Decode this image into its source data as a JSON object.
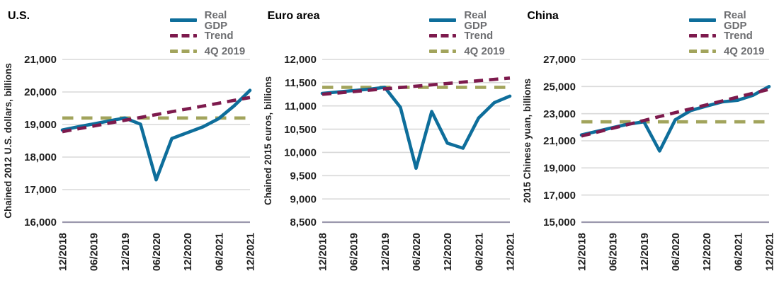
{
  "figure_name": "Real GDP vs pre-COVID trend, three economies",
  "colors": {
    "real_gdp": "#0E6E9B",
    "trend": "#7D1A4D",
    "fourq_2019": "#A2A45C",
    "gridline": "#D9D9D9",
    "axis_line": "#9B98AD",
    "tick_text": "#1F1F1F",
    "legend_text": "#6D6E71",
    "title_text": "#000000"
  },
  "legend": {
    "position": "top-right",
    "items": [
      {
        "label": "Real GDP",
        "color": "#0E6E9B",
        "style": "solid"
      },
      {
        "label": "Trend",
        "color": "#7D1A4D",
        "style": "dashed"
      },
      {
        "label": "4Q 2019",
        "color": "#A2A45C",
        "style": "dashed"
      }
    ]
  },
  "chart_data": [
    {
      "type": "line",
      "title": "U.S.",
      "ylabel": "Chained 2012 U.S. dollars, billions",
      "x_quarters": [
        "12/2018",
        "03/2019",
        "06/2019",
        "09/2019",
        "12/2019",
        "03/2020",
        "06/2020",
        "09/2020",
        "12/2020",
        "03/2021",
        "06/2021",
        "09/2021",
        "12/2021"
      ],
      "x_tick_indices": [
        0,
        2,
        4,
        6,
        8,
        10,
        12
      ],
      "x_tick_labels": [
        "12/2018",
        "06/2019",
        "12/2019",
        "06/2020",
        "12/2020",
        "06/2021",
        "12/2021"
      ],
      "ylim": [
        16000,
        21000
      ],
      "yticks": [
        16000,
        17000,
        18000,
        19000,
        20000,
        21000
      ],
      "ytick_labels": [
        "16,000",
        "17,000",
        "18,000",
        "19,000",
        "20,000",
        "21,000"
      ],
      "grid": true,
      "series": [
        {
          "name": "Real GDP",
          "color": "#0E6E9B",
          "style": "solid",
          "values": [
            18830,
            18930,
            19020,
            19110,
            19200,
            19010,
            17300,
            18570,
            18750,
            18930,
            19180,
            19580,
            20050
          ]
        },
        {
          "name": "Trend",
          "color": "#7D1A4D",
          "style": "dashed",
          "values": [
            18780,
            18868,
            18955,
            19043,
            19130,
            19218,
            19305,
            19393,
            19480,
            19568,
            19655,
            19743,
            19830
          ]
        },
        {
          "name": "4Q 2019",
          "color": "#A2A45C",
          "style": "dashed",
          "values": [
            19200,
            19200,
            19200,
            19200,
            19200,
            19200,
            19200,
            19200,
            19200,
            19200,
            19200,
            19200,
            19200
          ]
        }
      ]
    },
    {
      "type": "line",
      "title": "Euro area",
      "ylabel": "Chained 2015 euros, billions",
      "x_quarters": [
        "12/2018",
        "03/2019",
        "06/2019",
        "09/2019",
        "12/2019",
        "03/2020",
        "06/2020",
        "09/2020",
        "12/2020",
        "03/2021",
        "06/2021",
        "09/2021",
        "12/2021"
      ],
      "x_tick_indices": [
        0,
        2,
        4,
        6,
        8,
        10,
        12
      ],
      "x_tick_labels": [
        "12/2018",
        "06/2019",
        "12/2019",
        "06/2020",
        "12/2020",
        "06/2021",
        "12/2021"
      ],
      "ylim": [
        8500,
        12000
      ],
      "yticks": [
        8500,
        9000,
        9500,
        10000,
        10500,
        11000,
        11500,
        12000
      ],
      "ytick_labels": [
        "8,500",
        "9,000",
        "9,500",
        "10,000",
        "10,500",
        "11,000",
        "11,500",
        "12,000"
      ],
      "grid": true,
      "series": [
        {
          "name": "Real GDP",
          "color": "#0E6E9B",
          "style": "solid",
          "values": [
            11270,
            11300,
            11330,
            11360,
            11400,
            10970,
            9660,
            10880,
            10200,
            10090,
            10740,
            11070,
            11210
          ]
        },
        {
          "name": "Trend",
          "color": "#7D1A4D",
          "style": "dashed",
          "values": [
            11250,
            11279,
            11308,
            11338,
            11367,
            11396,
            11425,
            11454,
            11483,
            11513,
            11542,
            11571,
            11600
          ]
        },
        {
          "name": "4Q 2019",
          "color": "#A2A45C",
          "style": "dashed",
          "values": [
            11400,
            11400,
            11400,
            11400,
            11400,
            11400,
            11400,
            11400,
            11400,
            11400,
            11400,
            11400,
            11400
          ]
        }
      ]
    },
    {
      "type": "line",
      "title": "China",
      "ylabel": "2015 Chinese yuan, billions",
      "x_quarters": [
        "12/2018",
        "03/2019",
        "06/2019",
        "09/2019",
        "12/2019",
        "03/2020",
        "06/2020",
        "09/2020",
        "12/2020",
        "03/2021",
        "06/2021",
        "09/2021",
        "12/2021"
      ],
      "x_tick_indices": [
        0,
        2,
        4,
        6,
        8,
        10,
        12
      ],
      "x_tick_labels": [
        "12/2018",
        "06/2019",
        "12/2019",
        "06/2020",
        "12/2020",
        "06/2021",
        "12/2021"
      ],
      "ylim": [
        15000,
        27000
      ],
      "yticks": [
        15000,
        17000,
        19000,
        21000,
        23000,
        25000,
        27000
      ],
      "ytick_labels": [
        "15,000",
        "17,000",
        "19,000",
        "21,000",
        "23,000",
        "25,000",
        "27,000"
      ],
      "grid": true,
      "series": [
        {
          "name": "Real GDP",
          "color": "#0E6E9B",
          "style": "solid",
          "values": [
            21430,
            21700,
            21970,
            22230,
            22400,
            20250,
            22550,
            23240,
            23560,
            23870,
            23990,
            24370,
            25000
          ]
        },
        {
          "name": "Trend",
          "color": "#7D1A4D",
          "style": "dashed",
          "values": [
            21350,
            21638,
            21925,
            22213,
            22500,
            22788,
            23075,
            23363,
            23650,
            23938,
            24225,
            24513,
            24800
          ]
        },
        {
          "name": "4Q 2019",
          "color": "#A2A45C",
          "style": "dashed",
          "values": [
            22400,
            22400,
            22400,
            22400,
            22400,
            22400,
            22400,
            22400,
            22400,
            22400,
            22400,
            22400,
            22400
          ]
        }
      ]
    }
  ]
}
